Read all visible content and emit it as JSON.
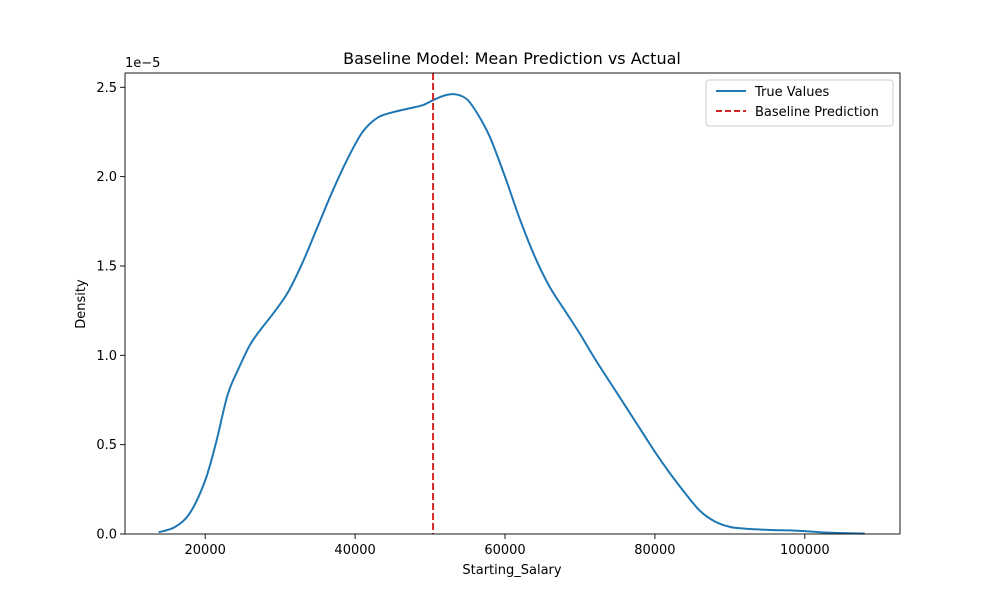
{
  "chart_data": {
    "type": "line",
    "title": "Baseline Model: Mean Prediction vs Actual",
    "xlabel": "Starting_Salary",
    "ylabel": "Density",
    "y_offset_label": "1e−5",
    "y_scale": 1e-05,
    "xlim": [
      9300,
      112700
    ],
    "ylim": [
      0,
      2.58
    ],
    "x_ticks": [
      {
        "value": 20000,
        "label": "20000"
      },
      {
        "value": 40000,
        "label": "40000"
      },
      {
        "value": 60000,
        "label": "60000"
      },
      {
        "value": 80000,
        "label": "80000"
      },
      {
        "value": 100000,
        "label": "100000"
      }
    ],
    "y_ticks": [
      {
        "value": 0.0,
        "label": "0.0"
      },
      {
        "value": 0.5,
        "label": "0.5"
      },
      {
        "value": 1.0,
        "label": "1.0"
      },
      {
        "value": 1.5,
        "label": "1.5"
      },
      {
        "value": 2.0,
        "label": "2.0"
      },
      {
        "value": 2.5,
        "label": "2.5"
      }
    ],
    "series": [
      {
        "name": "True Values",
        "kind": "kde",
        "color": "#1f77b4",
        "x": [
          13800,
          16000,
          18000,
          20000,
          21500,
          23000,
          24500,
          26000,
          27500,
          29000,
          31000,
          33000,
          35000,
          37000,
          39000,
          41000,
          43000,
          45000,
          47000,
          49000,
          50500,
          52000,
          53500,
          55000,
          56500,
          58000,
          60000,
          62000,
          64000,
          66000,
          68000,
          70000,
          72000,
          74000,
          76000,
          78000,
          80000,
          82000,
          84000,
          86000,
          88000,
          90000,
          92000,
          94000,
          96000,
          98000,
          100000,
          102000,
          104000,
          106000,
          108000
        ],
        "y": [
          0.01,
          0.04,
          0.12,
          0.3,
          0.52,
          0.78,
          0.93,
          1.06,
          1.15,
          1.23,
          1.35,
          1.52,
          1.72,
          1.92,
          2.1,
          2.25,
          2.33,
          2.36,
          2.38,
          2.4,
          2.43,
          2.455,
          2.46,
          2.43,
          2.34,
          2.22,
          2.0,
          1.76,
          1.55,
          1.38,
          1.25,
          1.12,
          0.98,
          0.85,
          0.72,
          0.59,
          0.46,
          0.34,
          0.23,
          0.13,
          0.07,
          0.04,
          0.03,
          0.025,
          0.022,
          0.02,
          0.016,
          0.01,
          0.006,
          0.004,
          0.002
        ]
      },
      {
        "name": "Baseline Prediction",
        "kind": "vline",
        "color": "#d62728",
        "x_value": 50400
      }
    ],
    "legend": {
      "position": "upper right",
      "entries": [
        "True Values",
        "Baseline Prediction"
      ]
    },
    "grid": false
  }
}
